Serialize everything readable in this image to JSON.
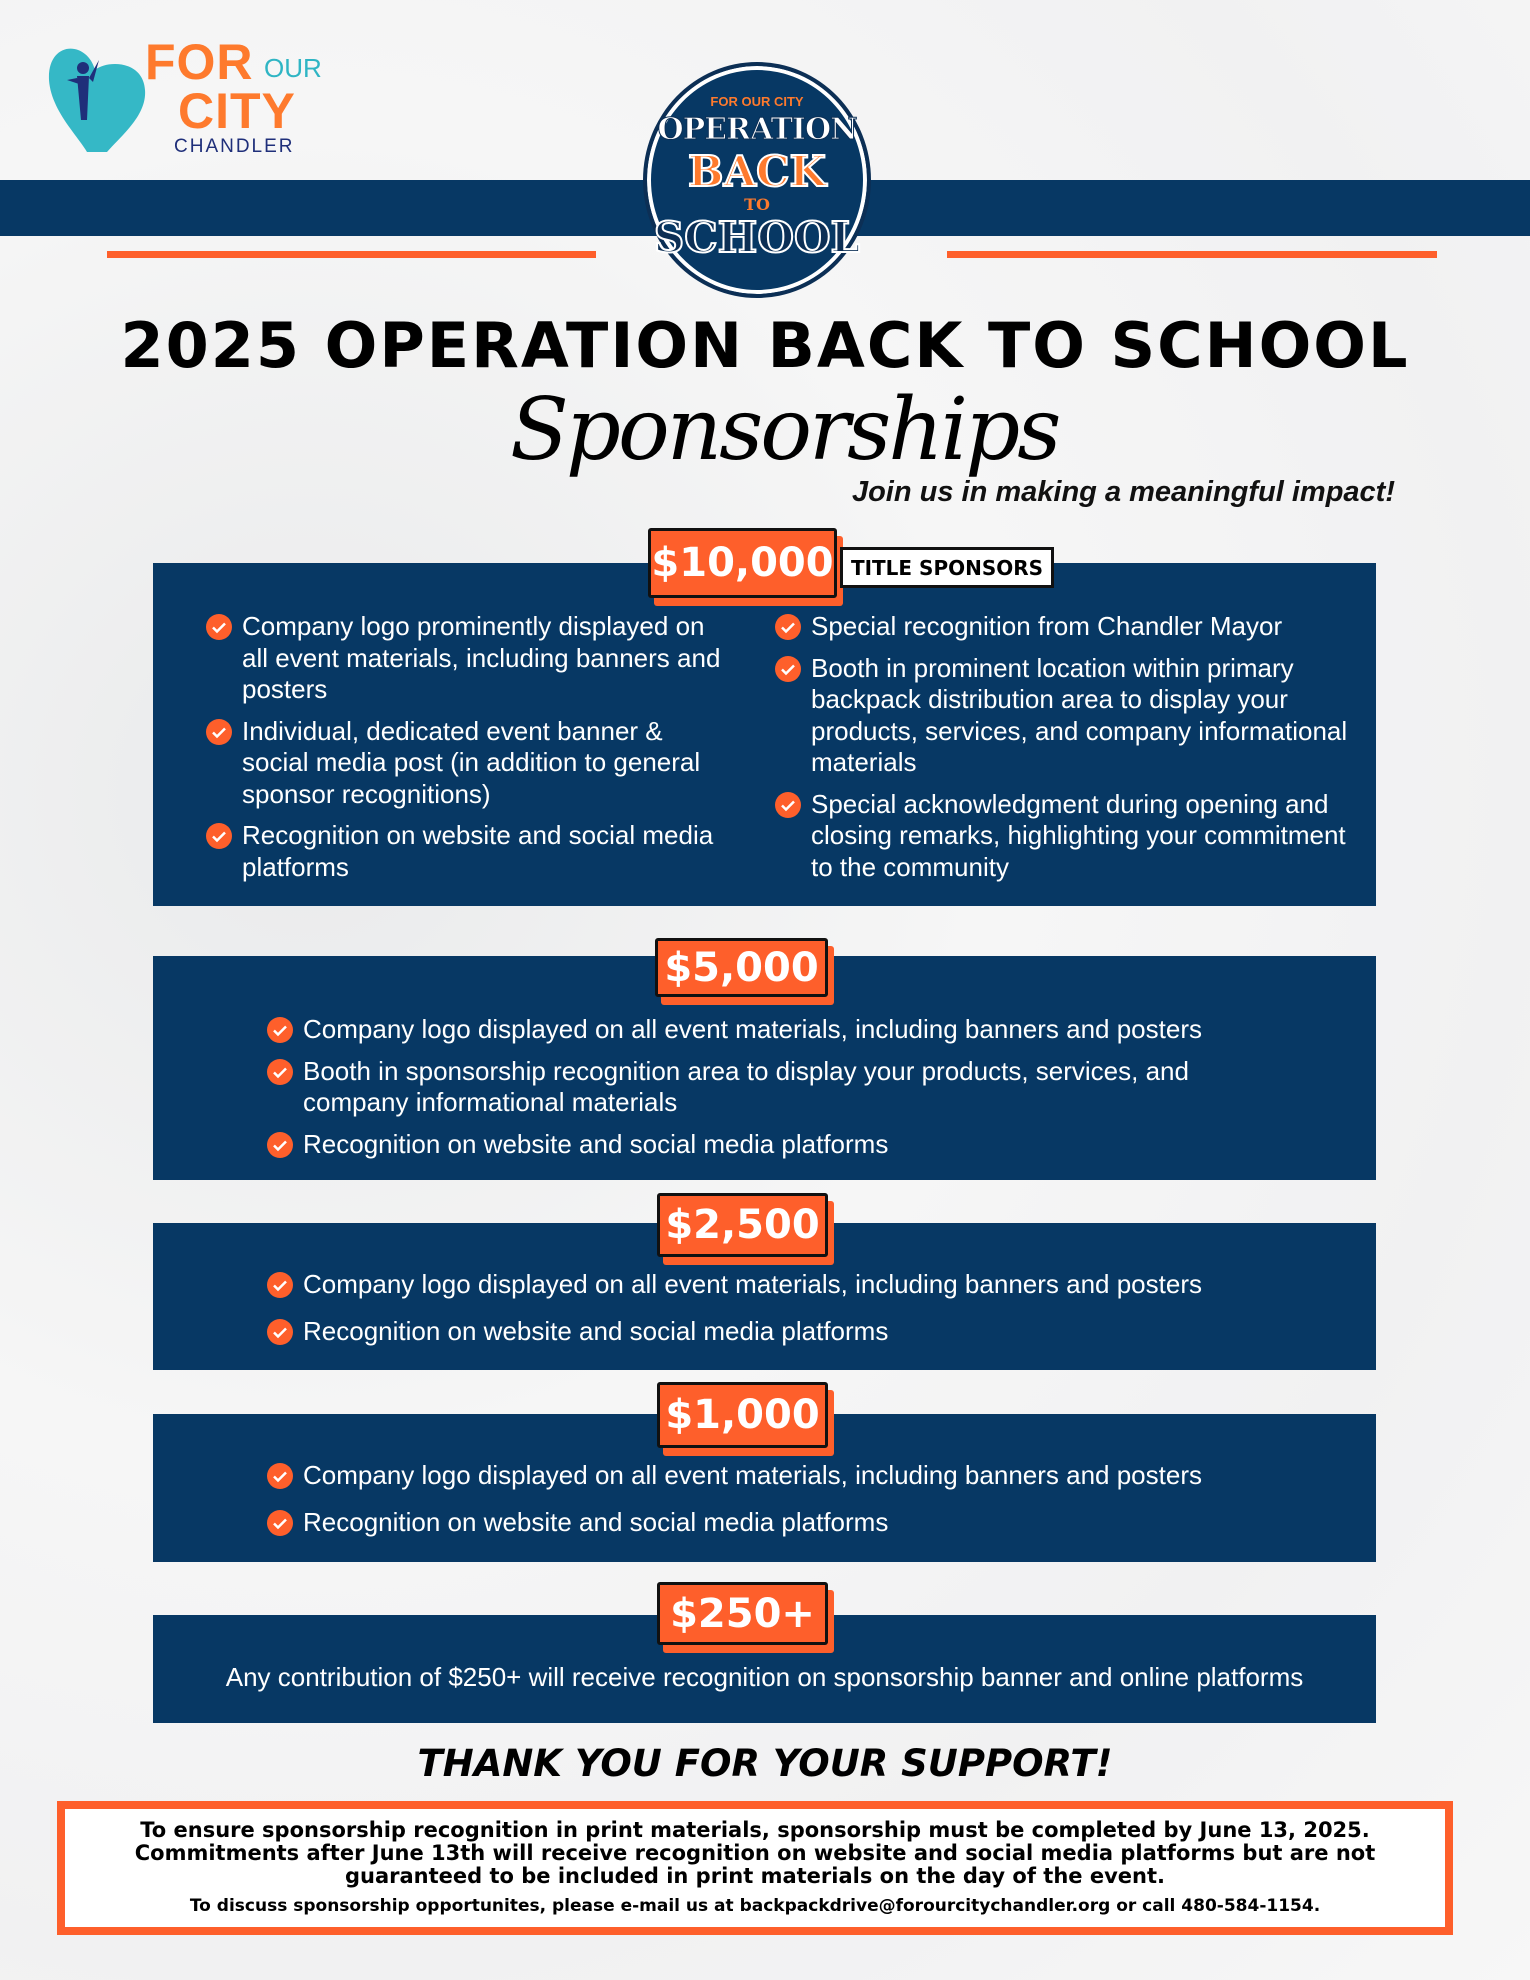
{
  "logo": {
    "for": "FOR",
    "our": "OUR",
    "city": "CITY",
    "chandler": "CHANDLER"
  },
  "badge": {
    "org": "FOR OUR CITY",
    "line1": "OPERATION",
    "line2": "BACK",
    "line3": "TO",
    "line4": "SCHOOL"
  },
  "title": "2025 OPERATION BACK TO SCHOOL",
  "script_title": "Sponsorships",
  "tagline": "Join us in making a meaningful impact!",
  "colors": {
    "navy": "#073864",
    "orange": "#fe5f2b"
  },
  "tiers": [
    {
      "price": "$10,000",
      "label": "TITLE SPONSORS",
      "left": [
        "Company logo prominently displayed on all event materials, including banners and posters",
        "Individual, dedicated event banner & social media post (in addition to general sponsor recognitions)",
        "Recognition on website and social media platforms"
      ],
      "right": [
        "Special recognition from Chandler Mayor",
        "Booth in prominent location within primary backpack distribution area to display your products, services, and company informational materials",
        "Special acknowledgment during opening and closing remarks, highlighting your commitment to the community"
      ]
    },
    {
      "price": "$5,000",
      "items": [
        "Company logo displayed on all event materials, including banners and posters",
        "Booth in sponsorship recognition area to display your products, services, and company informational materials",
        "Recognition on website and social media platforms"
      ]
    },
    {
      "price": "$2,500",
      "items": [
        "Company logo displayed on all event materials, including banners and posters",
        "Recognition on website and social media platforms"
      ]
    },
    {
      "price": "$1,000",
      "items": [
        "Company logo displayed on all event materials, including banners and posters",
        "Recognition on website and social media platforms"
      ]
    },
    {
      "price": "$250+",
      "text": "Any contribution of $250+ will receive recognition on sponsorship banner and online platforms"
    }
  ],
  "thanks": "THANK YOU FOR YOUR SUPPORT!",
  "footer": {
    "notice": "To ensure sponsorship recognition in print materials, sponsorship must be completed by June 13, 2025. Commitments after June 13th will receive recognition on website and social media platforms but are not guaranteed to be included in print materials on the day of the event.",
    "contact": "To discuss sponsorship opportunites, please e-mail us at backpackdrive@forourcitychandler.org or call 480-584-1154."
  }
}
